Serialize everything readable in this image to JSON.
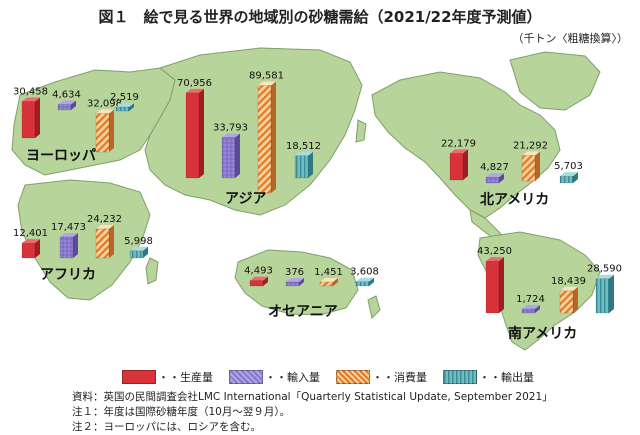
{
  "title": "図１　絵で見る世界の地域別の砂糖需給（2021/22年度予測値）",
  "unit_label": "（千トン〈粗糖換算〉）",
  "legend": [
    {
      "key": "production",
      "label": "・・生産量",
      "color": "#d8333a"
    },
    {
      "key": "imports",
      "label": "・・輸入量",
      "color": "#8877cc"
    },
    {
      "key": "consumption",
      "label": "・・消費量",
      "color": "#e8a050"
    },
    {
      "key": "exports",
      "label": "・・輸出量",
      "color": "#5aa8b0"
    }
  ],
  "notes": [
    "資料：英国の民間調査会社LMC International「Quarterly Statistical Update, September 2021」",
    "注１：年度は国際砂糖年度（10月～翌９月）。",
    "注２：ヨーロッパには、ロシアを含む。"
  ],
  "chart_data": {
    "type": "bar",
    "title": "図１　絵で見る世界の地域別の砂糖需給（2021/22年度予測値）",
    "unit": "千トン〈粗糖換算〉",
    "series_names": [
      "生産量",
      "輸入量",
      "消費量",
      "輸出量"
    ],
    "regions": [
      {
        "name": "ヨーロッパ",
        "values": [
          30458,
          4634,
          32098,
          2519
        ],
        "labels": [
          "30,458",
          "4,634",
          "32,098",
          "2,519"
        ]
      },
      {
        "name": "アジア",
        "values": [
          70956,
          33793,
          89581,
          18512
        ],
        "labels": [
          "70,956",
          "33,793",
          "89,581",
          "18,512"
        ]
      },
      {
        "name": "アフリカ",
        "values": [
          12401,
          17473,
          24232,
          5998
        ],
        "labels": [
          "12,401",
          "17,473",
          "24,232",
          "5,998"
        ]
      },
      {
        "name": "オセアニア",
        "values": [
          4493,
          376,
          1451,
          3608
        ],
        "labels": [
          "4,493",
          "376",
          "1,451",
          "3,608"
        ]
      },
      {
        "name": "北アメリカ",
        "values": [
          22179,
          4827,
          21292,
          5703
        ],
        "labels": [
          "22,179",
          "4,827",
          "21,292",
          "5,703"
        ]
      },
      {
        "name": "南アメリカ",
        "values": [
          43250,
          1724,
          18439,
          28590
        ],
        "labels": [
          "43,250",
          "1,724",
          "18,439",
          "28,590"
        ]
      }
    ]
  }
}
